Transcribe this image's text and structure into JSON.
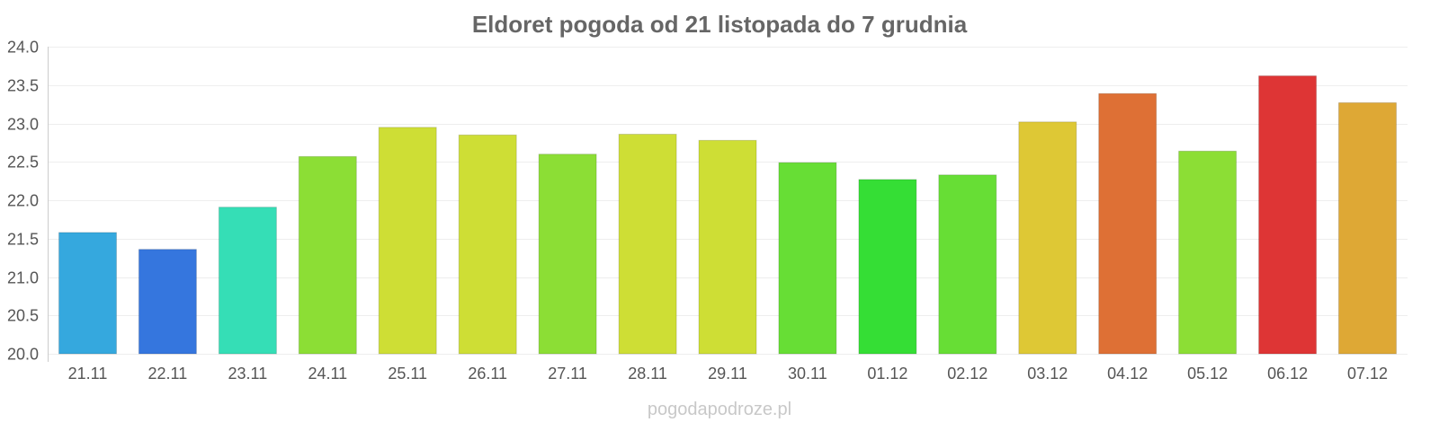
{
  "chart_data": {
    "type": "bar",
    "title": "Eldoret pogoda od 21 listopada do 7 grudnia",
    "xlabel": "",
    "ylabel": "",
    "categories": [
      "21.11",
      "22.11",
      "23.11",
      "24.11",
      "25.11",
      "26.11",
      "27.11",
      "28.11",
      "29.11",
      "30.11",
      "01.12",
      "02.12",
      "03.12",
      "04.12",
      "05.12",
      "06.12",
      "07.12"
    ],
    "values": [
      21.58,
      21.36,
      21.91,
      22.57,
      22.95,
      22.85,
      22.6,
      22.86,
      22.78,
      22.49,
      22.27,
      22.33,
      23.02,
      23.39,
      22.64,
      23.62,
      23.27
    ],
    "colors": [
      "#35a8de",
      "#3576de",
      "#35deb6",
      "#8cde35",
      "#cede35",
      "#cede35",
      "#8cde35",
      "#cede35",
      "#cede35",
      "#67de35",
      "#35de35",
      "#67de35",
      "#dec835",
      "#de7035",
      "#8cde35",
      "#de3535",
      "#dea835"
    ],
    "yticks": [
      "20.0",
      "20.5",
      "21.0",
      "21.5",
      "22.0",
      "22.5",
      "23.0",
      "23.5",
      "24.0"
    ],
    "ylim": [
      20.0,
      24.0
    ],
    "grid": true,
    "legend": "none"
  },
  "watermark": "pogodapodroze.pl"
}
